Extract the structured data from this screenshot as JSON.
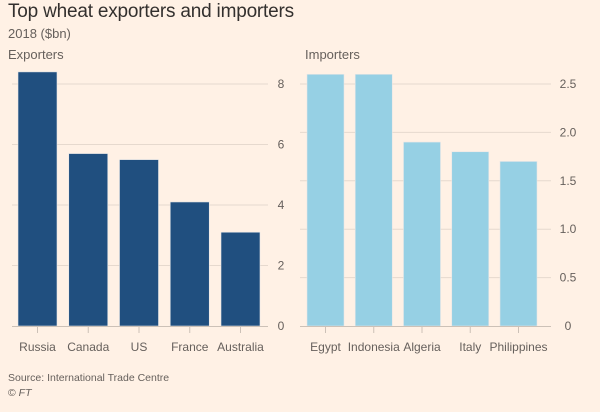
{
  "title": "Top wheat exporters and importers",
  "subtitle": "2018 ($bn)",
  "source": "Source: International Trade Centre",
  "copyright_symbol": "©",
  "copyright_org": "FT",
  "colors": {
    "background": "#FFF1E5",
    "exporters": "#204F7F",
    "importers": "#96D0E4",
    "gridline": "#E6D9CE",
    "text": "#66605C",
    "title": "#33302E"
  },
  "chart_data": [
    {
      "type": "bar",
      "title": "Exporters",
      "categories": [
        "Russia",
        "Canada",
        "US",
        "France",
        "Australia"
      ],
      "values": [
        8.4,
        5.7,
        5.5,
        4.1,
        3.1
      ],
      "ylim": [
        0,
        8
      ],
      "yticks": [
        0,
        2,
        4,
        6,
        8
      ],
      "ytick_labels": [
        "0",
        "2",
        "4",
        "6",
        "8"
      ],
      "xlabel": "",
      "ylabel": "",
      "unit": "$bn",
      "grid": true,
      "yaxis_side": "right"
    },
    {
      "type": "bar",
      "title": "Importers",
      "categories": [
        "Egypt",
        "Indonesia",
        "Algeria",
        "Italy",
        "Philippines"
      ],
      "values": [
        2.6,
        2.6,
        1.9,
        1.8,
        1.7
      ],
      "ylim": [
        0,
        2.5
      ],
      "yticks": [
        0,
        0.5,
        1.0,
        1.5,
        2.0,
        2.5
      ],
      "ytick_labels": [
        "0",
        "0.5",
        "1.0",
        "1.5",
        "2.0",
        "2.5"
      ],
      "xlabel": "",
      "ylabel": "",
      "unit": "$bn",
      "grid": true,
      "yaxis_side": "right"
    }
  ]
}
